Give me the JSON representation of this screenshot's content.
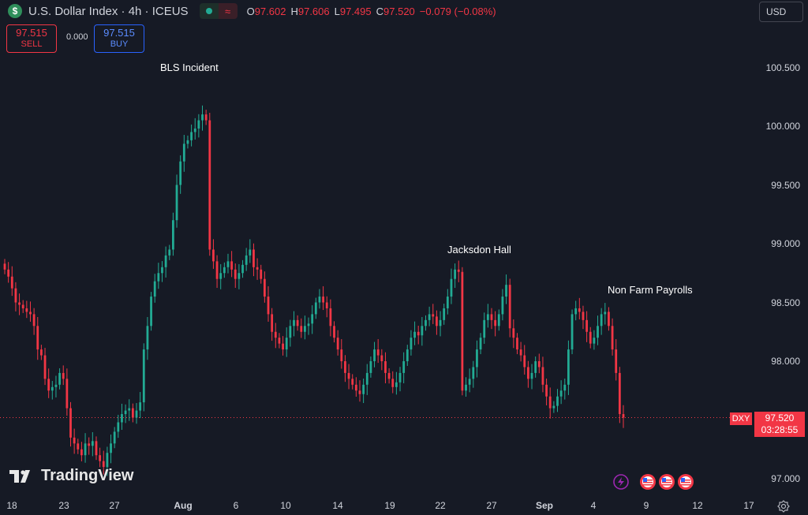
{
  "header": {
    "symbol_icon": "dollar-icon",
    "title": "U.S. Dollar Index · 4h · ICEUS",
    "ohlc": {
      "o_label": "O",
      "o": "97.602",
      "h_label": "H",
      "h": "97.606",
      "l_label": "L",
      "l": "97.495",
      "c_label": "C",
      "c": "97.520",
      "change": "−0.079 (−0.08%)"
    },
    "currency": "USD"
  },
  "trade": {
    "sell_price": "97.515",
    "sell_label": "SELL",
    "spread": "0.000",
    "buy_price": "97.515",
    "buy_label": "BUY"
  },
  "annotations": [
    "BLS Incident",
    "Jacksdon Hall",
    "Non Farm Payrolls"
  ],
  "price_tag": {
    "symbol": "DXY",
    "price": "97.520",
    "countdown": "03:28:55"
  },
  "branding": "TradingView",
  "colors": {
    "up": "#22ab94",
    "down": "#f23645",
    "background": "#161a25",
    "accent": "#2962ff"
  },
  "chart_data": {
    "type": "candlestick",
    "title": "U.S. Dollar Index · 4h · ICEUS",
    "x_ticks": [
      "18",
      "23",
      "27",
      "Aug",
      "6",
      "10",
      "14",
      "19",
      "22",
      "27",
      "Sep",
      "4",
      "9",
      "12",
      "17"
    ],
    "y_ticks": [
      "100.500",
      "100.000",
      "99.500",
      "99.000",
      "98.500",
      "98.000",
      "97.500",
      "97.000"
    ],
    "ylim": [
      96.93,
      100.72
    ],
    "last_price": 97.52,
    "close_series": [
      98.78,
      98.72,
      98.62,
      98.5,
      98.48,
      98.45,
      98.42,
      98.4,
      98.3,
      98.1,
      98.05,
      97.85,
      97.75,
      97.78,
      97.8,
      97.9,
      97.85,
      97.6,
      97.35,
      97.3,
      97.25,
      97.2,
      97.3,
      97.28,
      97.32,
      97.2,
      97.15,
      97.1,
      97.22,
      97.3,
      97.4,
      97.48,
      97.55,
      97.58,
      97.6,
      97.52,
      97.58,
      97.65,
      98.1,
      98.3,
      98.55,
      98.68,
      98.75,
      98.8,
      98.9,
      98.95,
      99.2,
      99.5,
      99.7,
      99.85,
      99.88,
      99.95,
      99.98,
      100.05,
      100.1,
      100.05,
      98.95,
      98.85,
      98.7,
      98.75,
      98.8,
      98.85,
      98.78,
      98.7,
      98.75,
      98.82,
      98.9,
      98.95,
      98.8,
      98.78,
      98.7,
      98.55,
      98.4,
      98.25,
      98.2,
      98.15,
      98.1,
      98.2,
      98.3,
      98.35,
      98.3,
      98.25,
      98.3,
      98.32,
      98.4,
      98.5,
      98.55,
      98.5,
      98.45,
      98.3,
      98.2,
      98.1,
      98.0,
      97.9,
      97.85,
      97.8,
      97.75,
      97.72,
      97.8,
      97.9,
      98.0,
      98.1,
      98.05,
      98.0,
      97.9,
      97.85,
      97.78,
      97.82,
      97.9,
      98.0,
      98.1,
      98.2,
      98.25,
      98.22,
      98.3,
      98.35,
      98.4,
      98.38,
      98.3,
      98.35,
      98.45,
      98.55,
      98.7,
      98.78,
      98.76,
      97.75,
      97.8,
      97.85,
      97.95,
      98.1,
      98.2,
      98.35,
      98.4,
      98.35,
      98.3,
      98.4,
      98.55,
      98.65,
      98.28,
      98.2,
      98.1,
      98.05,
      97.95,
      97.85,
      97.9,
      98.0,
      97.95,
      97.8,
      97.7,
      97.6,
      97.62,
      97.7,
      97.75,
      97.8,
      98.1,
      98.4,
      98.45,
      98.42,
      98.35,
      98.25,
      98.15,
      98.2,
      98.3,
      98.4,
      98.42,
      98.3,
      98.1,
      97.9,
      97.55,
      97.52
    ]
  }
}
